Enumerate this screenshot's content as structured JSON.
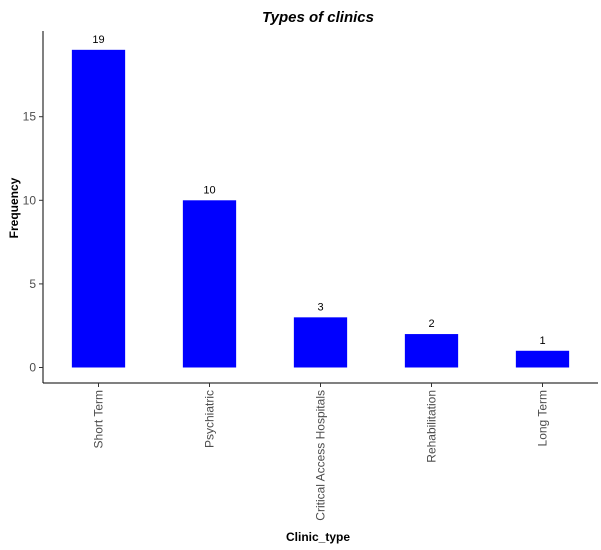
{
  "chart_data": {
    "type": "bar",
    "title": "Types of clinics",
    "xlabel": "Clinic_type",
    "ylabel": "Frequency",
    "categories": [
      "Short Term",
      "Psychiatric",
      "Critical Access Hospitals",
      "Rehabilitation",
      "Long Term"
    ],
    "values": [
      19,
      10,
      3,
      2,
      1
    ],
    "data_labels": [
      "19",
      "10",
      "3",
      "2",
      "1"
    ],
    "ylim": [
      0,
      20
    ],
    "yticks": [
      0,
      5,
      10,
      15
    ],
    "ytick_labels": [
      "0",
      "5",
      "10",
      "15"
    ],
    "bar_color": "#0000ff",
    "grid": false,
    "legend": "none"
  }
}
